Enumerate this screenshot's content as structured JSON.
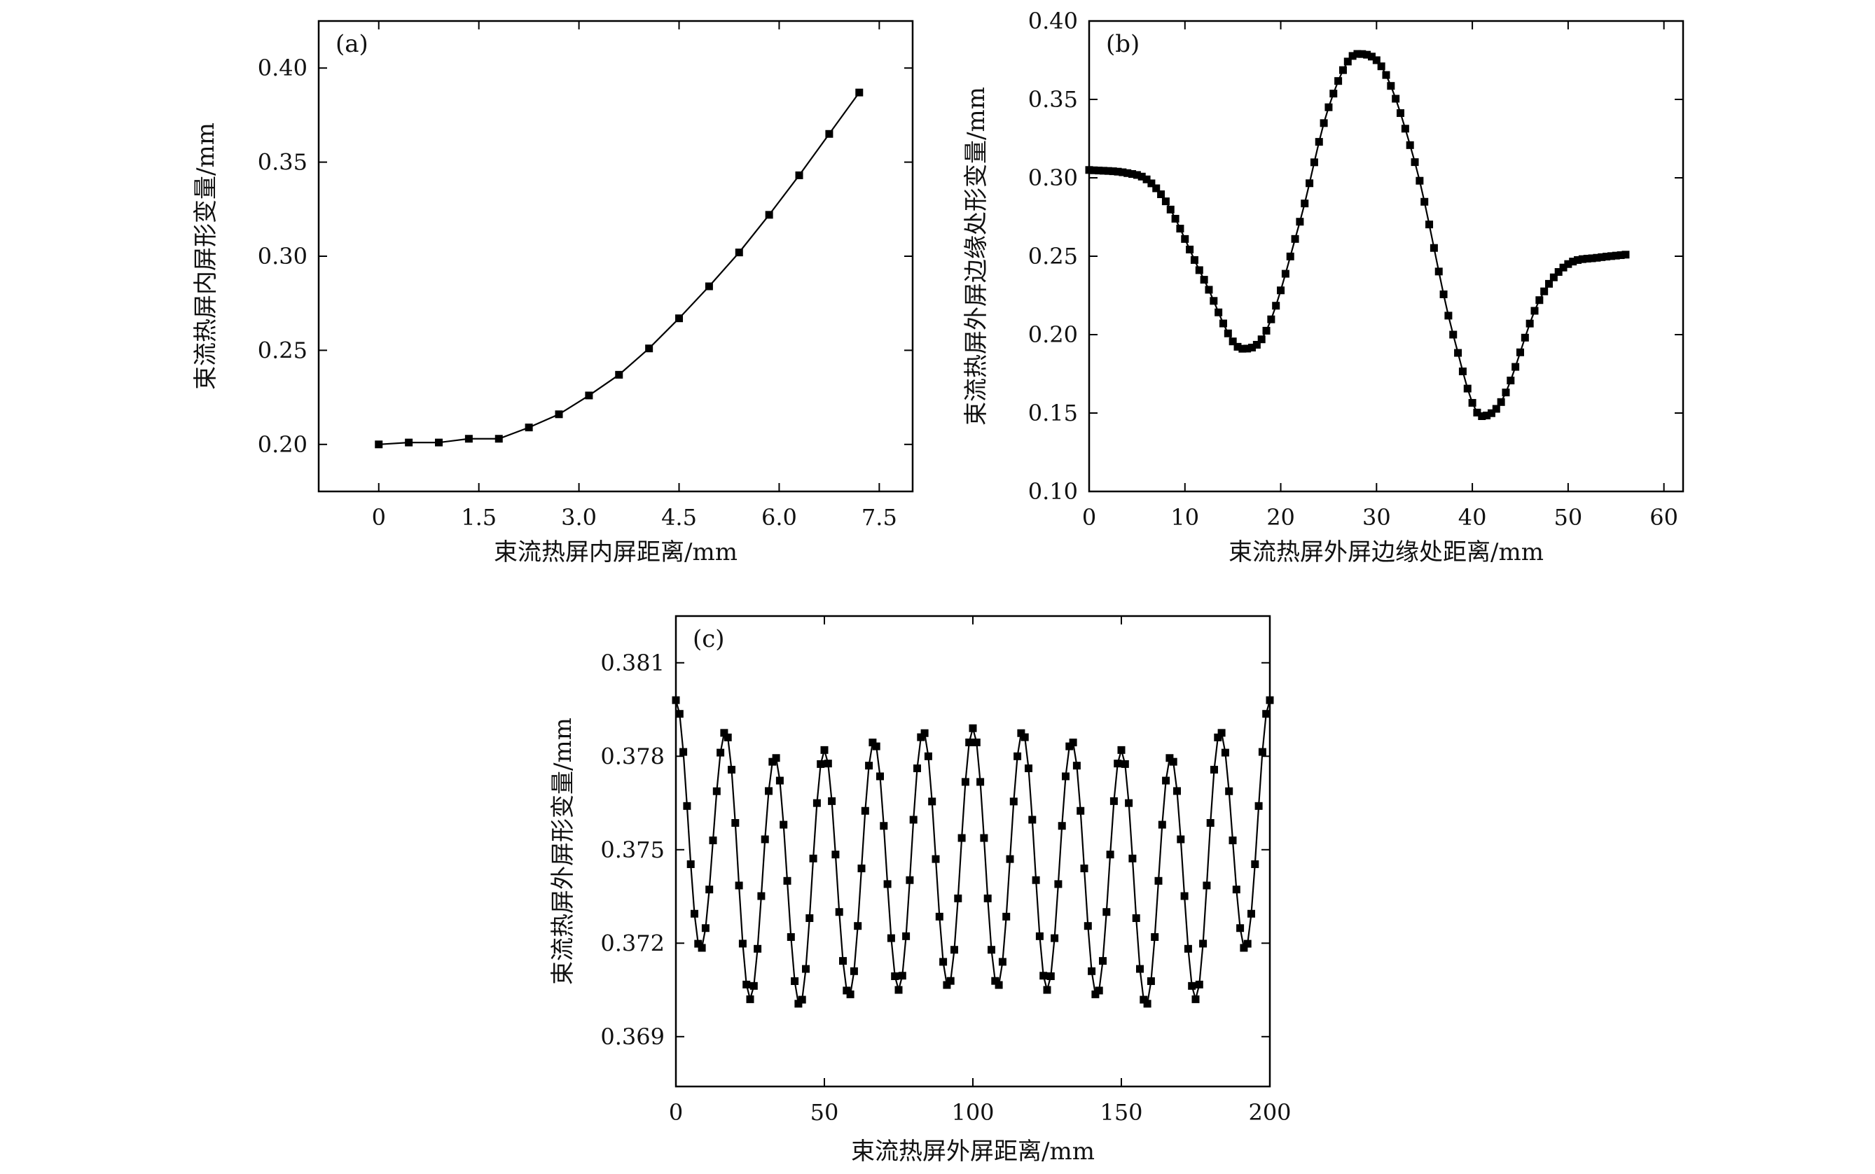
{
  "chart_data": [
    {
      "id": "a",
      "type": "line",
      "panel_label": "(a)",
      "xlabel": "束流热屏内屏距离/mm",
      "ylabel": "束流热屏内屏形变量/mm",
      "xlim": [
        -0.9,
        8.0
      ],
      "ylim": [
        0.175,
        0.425
      ],
      "xticks": [
        0,
        1.5,
        3.0,
        4.5,
        6.0,
        7.5
      ],
      "xtick_labels": [
        "0",
        "1.5",
        "3.0",
        "4.5",
        "6.0",
        "7.5"
      ],
      "yticks": [
        0.2,
        0.25,
        0.3,
        0.35,
        0.4
      ],
      "ytick_labels": [
        "0.20",
        "0.25",
        "0.30",
        "0.35",
        "0.40"
      ],
      "grid": false,
      "marker": "square",
      "series": [
        {
          "x": [
            0,
            0.45,
            0.9,
            1.35,
            1.8,
            2.25,
            2.7,
            3.15,
            3.6,
            4.05,
            4.5,
            4.95,
            5.4,
            5.85,
            6.3,
            6.75,
            7.2
          ],
          "y": [
            0.2,
            0.201,
            0.201,
            0.203,
            0.203,
            0.209,
            0.216,
            0.226,
            0.237,
            0.251,
            0.267,
            0.284,
            0.302,
            0.322,
            0.343,
            0.365,
            0.387
          ]
        }
      ]
    },
    {
      "id": "b",
      "type": "line",
      "panel_label": "(b)",
      "xlabel": "束流热屏外屏边缘处距离/mm",
      "ylabel": "束流热屏外屏边缘处形变量/mm",
      "xlim": [
        0,
        62
      ],
      "ylim": [
        0.1,
        0.4
      ],
      "xticks": [
        0,
        10,
        20,
        30,
        40,
        50,
        60
      ],
      "xtick_labels": [
        "0",
        "10",
        "20",
        "30",
        "40",
        "50",
        "60"
      ],
      "yticks": [
        0.1,
        0.15,
        0.2,
        0.25,
        0.3,
        0.35,
        0.4
      ],
      "ytick_labels": [
        "0.10",
        "0.15",
        "0.20",
        "0.25",
        "0.30",
        "0.35",
        "0.40"
      ],
      "grid": false,
      "marker": "square",
      "x_range": [
        0,
        56
      ],
      "point_spacing": 0.5,
      "series": [
        {
          "key_points": [
            {
              "x": 0,
              "y": 0.305
            },
            {
              "x": 4,
              "y": 0.303
            },
            {
              "x": 6,
              "y": 0.299
            },
            {
              "x": 8,
              "y": 0.285
            },
            {
              "x": 12,
              "y": 0.235
            },
            {
              "x": 16,
              "y": 0.191
            },
            {
              "x": 18,
              "y": 0.197
            },
            {
              "x": 22,
              "y": 0.272
            },
            {
              "x": 25,
              "y": 0.345
            },
            {
              "x": 28,
              "y": 0.379
            },
            {
              "x": 30,
              "y": 0.375
            },
            {
              "x": 34,
              "y": 0.31
            },
            {
              "x": 38,
              "y": 0.2
            },
            {
              "x": 41,
              "y": 0.148
            },
            {
              "x": 43,
              "y": 0.157
            },
            {
              "x": 47,
              "y": 0.222
            },
            {
              "x": 50,
              "y": 0.245
            },
            {
              "x": 53,
              "y": 0.249
            },
            {
              "x": 56,
              "y": 0.251
            }
          ]
        }
      ]
    },
    {
      "id": "c",
      "type": "line",
      "panel_label": "(c)",
      "xlabel": "束流热屏外屏距离/mm",
      "ylabel": "束流热屏外屏形变量/mm",
      "xlim": [
        0,
        200
      ],
      "ylim": [
        0.3674,
        0.3825
      ],
      "xticks": [
        0,
        50,
        100,
        150,
        200
      ],
      "xtick_labels": [
        "0",
        "50",
        "100",
        "150",
        "200"
      ],
      "yticks": [
        0.369,
        0.372,
        0.375,
        0.378,
        0.381
      ],
      "ytick_labels": [
        "0.369",
        "0.372",
        "0.375",
        "0.378",
        "0.381"
      ],
      "grid": false,
      "marker": "square",
      "point_spacing": 1.25,
      "series": [
        {
          "maxima": [
            {
              "x": 0,
              "y": 0.3798
            },
            {
              "x": 16.7,
              "y": 0.3788
            },
            {
              "x": 33.3,
              "y": 0.378
            },
            {
              "x": 50,
              "y": 0.3782
            },
            {
              "x": 66.7,
              "y": 0.3785
            },
            {
              "x": 83.3,
              "y": 0.3788
            },
            {
              "x": 100,
              "y": 0.3789
            },
            {
              "x": 116.7,
              "y": 0.3788
            },
            {
              "x": 133.3,
              "y": 0.3785
            },
            {
              "x": 150,
              "y": 0.3782
            },
            {
              "x": 166.7,
              "y": 0.378
            },
            {
              "x": 183.3,
              "y": 0.3788
            },
            {
              "x": 200,
              "y": 0.3798
            }
          ],
          "minima": [
            {
              "x": 8.3,
              "y": 0.3718
            },
            {
              "x": 25,
              "y": 0.3702
            },
            {
              "x": 41.7,
              "y": 0.37
            },
            {
              "x": 58.3,
              "y": 0.3703
            },
            {
              "x": 75,
              "y": 0.3705
            },
            {
              "x": 91.7,
              "y": 0.3706
            },
            {
              "x": 108.3,
              "y": 0.3706
            },
            {
              "x": 125,
              "y": 0.3705
            },
            {
              "x": 141.7,
              "y": 0.3703
            },
            {
              "x": 158.3,
              "y": 0.37
            },
            {
              "x": 175,
              "y": 0.3702
            },
            {
              "x": 191.7,
              "y": 0.3718
            }
          ]
        }
      ]
    }
  ],
  "colors": {
    "line": "#000000",
    "marker": "#000000",
    "frame": "#000000"
  }
}
